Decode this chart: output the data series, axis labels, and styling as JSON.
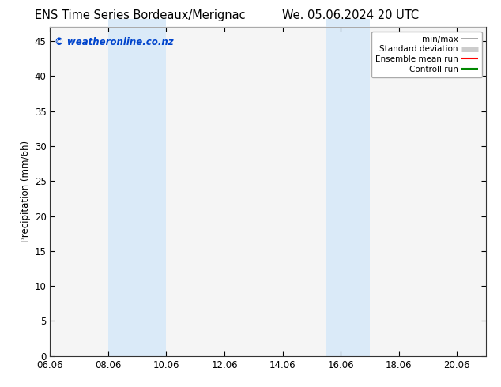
{
  "title_left": "ENS Time Series Bordeaux/Merignac",
  "title_right": "We. 05.06.2024 20 UTC",
  "ylabel": "Precipitation (mm/6h)",
  "xlim": [
    6.06,
    21.06
  ],
  "ylim": [
    0,
    47
  ],
  "yticks": [
    0,
    5,
    10,
    15,
    20,
    25,
    30,
    35,
    40,
    45
  ],
  "xticks": [
    6.06,
    8.06,
    10.06,
    12.06,
    14.06,
    16.06,
    18.06,
    20.06
  ],
  "xticklabels": [
    "06.06",
    "08.06",
    "10.06",
    "12.06",
    "14.06",
    "16.06",
    "18.06",
    "20.06"
  ],
  "shaded_regions": [
    {
      "xmin": 8.06,
      "xmax": 10.06,
      "color": "#daeaf8"
    },
    {
      "xmin": 15.56,
      "xmax": 17.06,
      "color": "#daeaf8"
    }
  ],
  "top_bar_color": "#daeaf8",
  "top_bar_regions": [
    {
      "xmin": 8.06,
      "xmax": 10.06
    },
    {
      "xmin": 15.56,
      "xmax": 17.06
    }
  ],
  "watermark": "© weatheronline.co.nz",
  "watermark_color": "#0044cc",
  "background_color": "#ffffff",
  "plot_bg_color": "#f5f5f5",
  "legend_entries": [
    {
      "label": "min/max",
      "color": "#999999",
      "lw": 1.2
    },
    {
      "label": "Standard deviation",
      "color": "#cccccc",
      "lw": 5
    },
    {
      "label": "Ensemble mean run",
      "color": "#ff0000",
      "lw": 1.5
    },
    {
      "label": "Controll run",
      "color": "#008800",
      "lw": 1.5
    }
  ],
  "title_fontsize": 10.5,
  "tick_fontsize": 8.5,
  "ylabel_fontsize": 8.5,
  "watermark_fontsize": 8.5,
  "legend_fontsize": 7.5
}
